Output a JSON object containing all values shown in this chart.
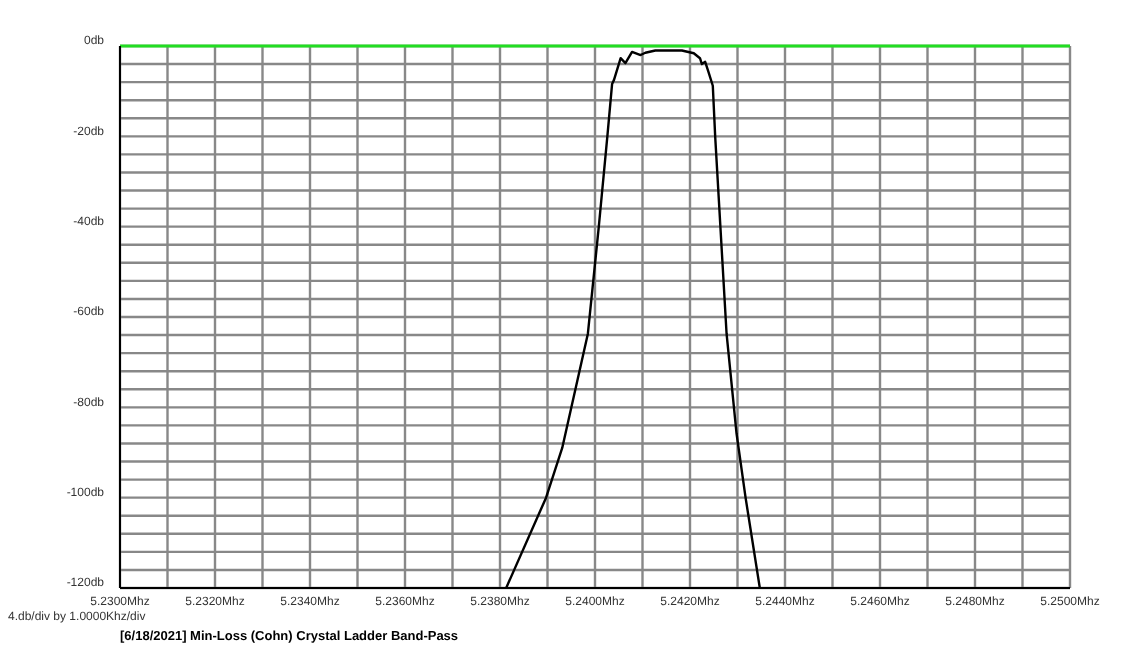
{
  "chart_data": {
    "type": "line",
    "title": "[6/18/2021] Min-Loss (Cohn) Crystal Ladder Band-Pass",
    "annotations": [
      "4.db/div by 1.0000Khz/div"
    ],
    "series": [
      {
        "color": "#000000",
        "x": [
          5.23813,
          5.23897,
          5.23931,
          5.23985,
          5.24008,
          5.24026,
          5.24036,
          5.2404,
          5.24054,
          5.24064,
          5.24078,
          5.24096,
          5.24106,
          5.24127,
          5.24183,
          5.24208,
          5.24221,
          5.24225,
          5.24232,
          5.24239,
          5.24248,
          5.24253,
          5.24277,
          5.24298,
          5.24317,
          5.24347
        ],
        "values": [
          -120,
          -100,
          -89,
          -63.7,
          -40,
          -20,
          -8.4,
          -7.5,
          -2.7,
          -3.8,
          -1.3,
          -2,
          -1.5,
          -1,
          -1,
          -1.6,
          -2.7,
          -4,
          -3.5,
          -5.8,
          -8.8,
          -20,
          -63.7,
          -85.8,
          -100,
          -120
        ]
      }
    ],
    "xlim": [
      5.23,
      5.25
    ],
    "xticks": [
      {
        "value": 5.23,
        "label": "5.2300Mhz"
      },
      {
        "value": 5.231,
        "label": null
      },
      {
        "value": 5.232,
        "label": "5.2320Mhz"
      },
      {
        "value": 5.233,
        "label": null
      },
      {
        "value": 5.234,
        "label": "5.2340Mhz"
      },
      {
        "value": 5.235,
        "label": null
      },
      {
        "value": 5.236,
        "label": "5.2360Mhz"
      },
      {
        "value": 5.237,
        "label": null
      },
      {
        "value": 5.238,
        "label": "5.2380Mhz"
      },
      {
        "value": 5.239,
        "label": null
      },
      {
        "value": 5.24,
        "label": "5.2400Mhz"
      },
      {
        "value": 5.241,
        "label": null
      },
      {
        "value": 5.242,
        "label": "5.2420Mhz"
      },
      {
        "value": 5.243,
        "label": null
      },
      {
        "value": 5.244,
        "label": "5.2440Mhz"
      },
      {
        "value": 5.245,
        "label": null
      },
      {
        "value": 5.246,
        "label": "5.2460Mhz"
      },
      {
        "value": 5.247,
        "label": null
      },
      {
        "value": 5.248,
        "label": "5.2480Mhz"
      },
      {
        "value": 5.249,
        "label": null
      },
      {
        "value": 5.25,
        "label": "5.2500Mhz"
      }
    ],
    "ylim": [
      -120,
      0
    ],
    "yticks": [
      {
        "value": -120,
        "label": "-120db"
      },
      {
        "value": -116,
        "label": null
      },
      {
        "value": -112,
        "label": null
      },
      {
        "value": -108,
        "label": null
      },
      {
        "value": -104,
        "label": null
      },
      {
        "value": -100,
        "label": "-100db"
      },
      {
        "value": -96,
        "label": null
      },
      {
        "value": -92,
        "label": null
      },
      {
        "value": -88,
        "label": null
      },
      {
        "value": -84,
        "label": null
      },
      {
        "value": -80,
        "label": "-80db"
      },
      {
        "value": -76,
        "label": null
      },
      {
        "value": -72,
        "label": null
      },
      {
        "value": -68,
        "label": null
      },
      {
        "value": -64,
        "label": null
      },
      {
        "value": -60,
        "label": "-60db"
      },
      {
        "value": -56,
        "label": null
      },
      {
        "value": -52,
        "label": null
      },
      {
        "value": -48,
        "label": null
      },
      {
        "value": -44,
        "label": null
      },
      {
        "value": -40,
        "label": "-40db"
      },
      {
        "value": -36,
        "label": null
      },
      {
        "value": -32,
        "label": null
      },
      {
        "value": -28,
        "label": null
      },
      {
        "value": -24,
        "label": null
      },
      {
        "value": -20,
        "label": "-20db"
      },
      {
        "value": -16,
        "label": null
      },
      {
        "value": -12,
        "label": null
      },
      {
        "value": -8,
        "label": null
      },
      {
        "value": -4,
        "label": null
      },
      {
        "value": 0,
        "label": "0db"
      }
    ],
    "ref_lines": [
      {
        "axis": "y",
        "value": 0,
        "label": null,
        "color": "#22dd22"
      }
    ],
    "grid": true,
    "legend": false,
    "marker": "none",
    "line_style": "solid"
  }
}
